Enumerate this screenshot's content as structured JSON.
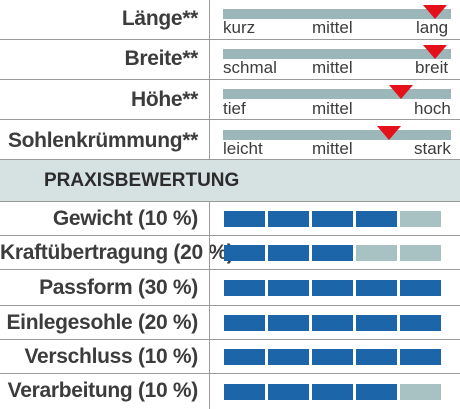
{
  "criteria": [
    {
      "label": "Länge**",
      "low": "kurz",
      "mid": "mittel",
      "high": "lang",
      "position": 0.93
    },
    {
      "label": "Breite**",
      "low": "schmal",
      "mid": "mittel",
      "high": "breit",
      "position": 0.93
    },
    {
      "label": "Höhe**",
      "low": "tief",
      "mid": "mittel",
      "high": "hoch",
      "position": 0.78
    },
    {
      "label": "Sohlenkrümmung**",
      "low": "leicht",
      "mid": "mittel",
      "high": "stark",
      "position": 0.73
    }
  ],
  "section_title": "PRAXISBEWERTUNG",
  "ratings": [
    {
      "label": "Gewicht (10 %)",
      "score": 4,
      "max": 5
    },
    {
      "label": "Kraftübertragung (20 %)",
      "score": 3,
      "max": 5
    },
    {
      "label": "Passform (30 %)",
      "score": 5,
      "max": 5
    },
    {
      "label": "Einlegesohle (20 %)",
      "score": 5,
      "max": 5
    },
    {
      "label": "Verschluss (10 %)",
      "score": 5,
      "max": 5
    },
    {
      "label": "Verarbeitung (10 %)",
      "score": 4,
      "max": 5
    }
  ],
  "colors": {
    "marker": "#e5111a",
    "scale": "#9cb7b9",
    "filled": "#1b65a8",
    "empty": "#a8c1c2",
    "section_bg": "#d6e1e2"
  }
}
